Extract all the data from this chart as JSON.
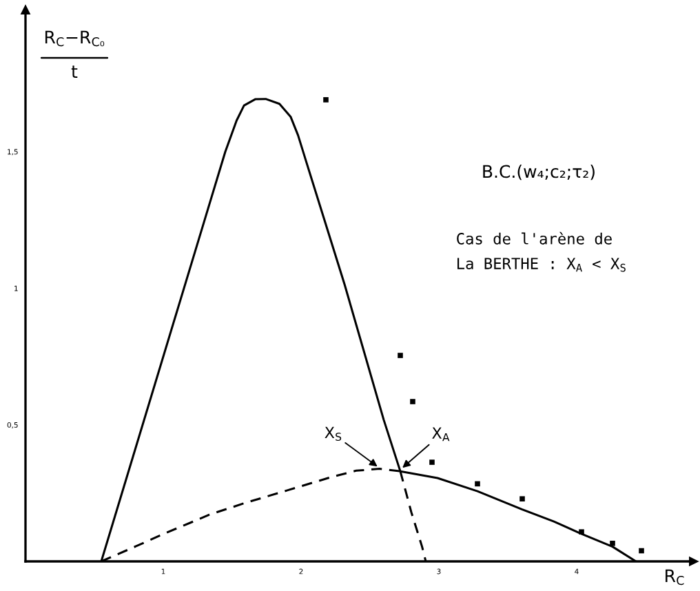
{
  "chart_data": {
    "type": "line",
    "xlabel": "R$_{C}$",
    "ylabel": "R$_{C}$−R$_{C₀}$\nt",
    "xlim": [
      0,
      4.85
    ],
    "ylim": [
      0,
      2.02
    ],
    "xticks": [
      1,
      2,
      3,
      4
    ],
    "yticks": [
      {
        "value": 0.5,
        "label": "0,5"
      },
      1,
      {
        "value": 1.5,
        "label": "1,5"
      }
    ],
    "series": [
      {
        "color": "#000000",
        "line_style": "solid",
        "x": [
          0.55,
          1.3,
          1.45,
          1.532,
          1.586,
          1.667,
          1.743,
          1.843,
          1.924,
          1.978,
          2.045,
          2.315,
          2.6,
          2.72,
          2.99,
          3.28,
          3.605,
          3.835,
          4.03,
          4.26,
          4.43
        ],
        "values": [
          0,
          1.25,
          1.5,
          1.614,
          1.669,
          1.692,
          1.693,
          1.675,
          1.628,
          1.56,
          1.451,
          1.015,
          0.518,
          0.33,
          0.305,
          0.257,
          0.19,
          0.146,
          0.102,
          0.054,
          0
        ]
      },
      {
        "color": "#000000",
        "line_style": "dashed",
        "x": [
          0.55,
          0.8,
          1.0,
          1.335,
          1.6,
          1.9,
          2.235,
          2.4,
          2.57,
          2.72
        ],
        "values": [
          0,
          0.055,
          0.1,
          0.171,
          0.215,
          0.26,
          0.311,
          0.332,
          0.339,
          0.33
        ]
      },
      {
        "color": "#000000",
        "line_style": "dashed",
        "x": [
          2.72,
          2.8,
          2.878,
          2.905
        ],
        "values": [
          0.33,
          0.18,
          0.054,
          0
        ]
      },
      {
        "type": "scatter",
        "color": "#000000",
        "marker": "square",
        "x": [
          2.18,
          2.72,
          2.81,
          2.95,
          3.28,
          3.605,
          4.035,
          4.26,
          4.47
        ],
        "values": [
          1.69,
          0.754,
          0.585,
          0.363,
          0.284,
          0.229,
          0.108,
          0.066,
          0.039
        ]
      }
    ],
    "annotations": [
      "B.C.(w₄;c₂;τ₂)",
      "Cas de l'arène de\nLa BERTHE : X$_{A}$ < X$_{S}$",
      {
        "text": "X$_{S}$",
        "x": 2.56,
        "y": 0.345
      },
      {
        "text": "X$_{A}$",
        "x": 2.73,
        "y": 0.34
      }
    ]
  }
}
